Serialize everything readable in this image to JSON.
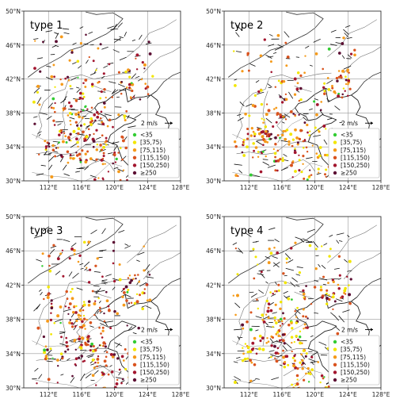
{
  "panels": [
    {
      "title": "type 1"
    },
    {
      "title": "type 2"
    },
    {
      "title": "type 3"
    },
    {
      "title": "type 4"
    }
  ],
  "axes": {
    "lat_ticks": [
      "30°N",
      "34°N",
      "38°N",
      "42°N",
      "46°N",
      "50°N"
    ],
    "lon_ticks": [
      "112°E",
      "116°E",
      "120°E",
      "124°E",
      "128°E"
    ]
  },
  "wind_scale_label": "2 m/s",
  "legend": [
    {
      "label": "<35",
      "color": "#33cc33"
    },
    {
      "label": "[35,75)",
      "color": "#f2e600"
    },
    {
      "label": "[75,115)",
      "color": "#f59a1a"
    },
    {
      "label": "[115,150)",
      "color": "#d9531e"
    },
    {
      "label": "[150,250)",
      "color": "#a3162f"
    },
    {
      "label": "≥250",
      "color": "#5c0f33"
    }
  ]
}
